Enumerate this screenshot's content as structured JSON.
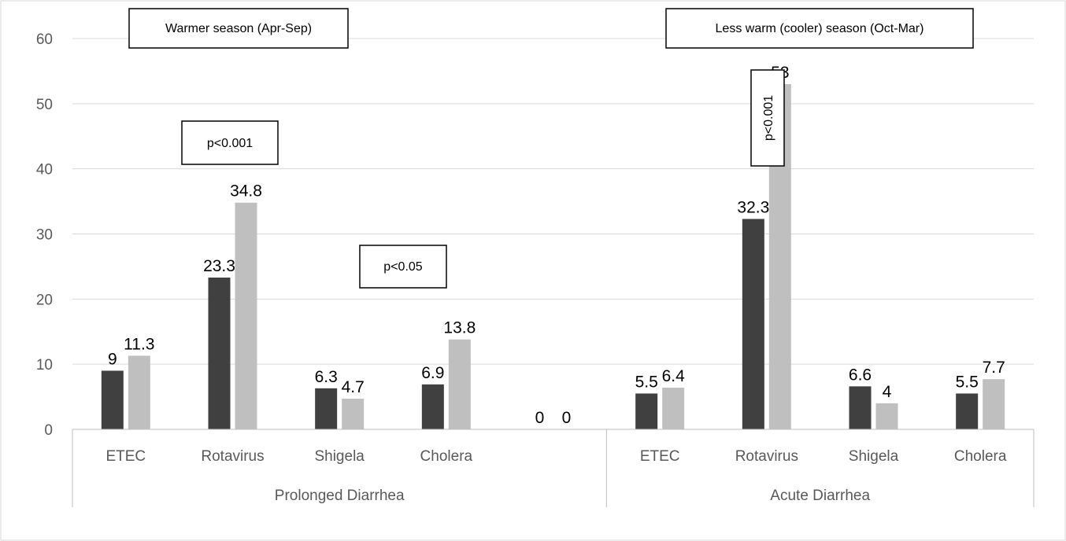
{
  "chart_data": {
    "type": "bar",
    "title": "",
    "xlabel": "",
    "ylabel": "",
    "ylim": [
      0,
      60
    ],
    "yticks": [
      "0",
      "10",
      "20",
      "30",
      "40",
      "50",
      "60"
    ],
    "grid": true,
    "legend": "none",
    "colors": {
      "series_1": "#404040",
      "series_2": "#bfbfbf"
    },
    "groups": [
      {
        "name": "Prolonged Diarrhea",
        "categories": [
          "ETEC",
          "Rotavirus",
          "Shigela",
          "Cholera",
          ""
        ],
        "series": [
          {
            "values": [
              9,
              23.3,
              6.3,
              6.9,
              0
            ],
            "labels": [
              "9",
              "23.3",
              "6.3",
              "6.9",
              "0"
            ]
          },
          {
            "values": [
              11.3,
              34.8,
              4.7,
              13.8,
              0
            ],
            "labels": [
              "11.3",
              "34.8",
              "4.7",
              "13.8",
              "0"
            ]
          }
        ]
      },
      {
        "name": "Acute Diarrhea",
        "categories": [
          "ETEC",
          "Rotavirus",
          "Shigela",
          "Cholera"
        ],
        "series": [
          {
            "values": [
              5.5,
              32.3,
              6.6,
              5.5
            ],
            "labels": [
              "5.5",
              "32.3",
              "6.6",
              "5.5"
            ]
          },
          {
            "values": [
              6.4,
              53,
              4,
              7.7
            ],
            "labels": [
              "6.4",
              "53",
              "4",
              "7.7"
            ]
          }
        ]
      }
    ],
    "annotations": {
      "warm_season": "Warmer season (Apr-Sep)",
      "cool_season": "Less warm (cooler) season (Oct-Mar)",
      "p_prolonged_rotavirus": "p<0.001",
      "p_prolonged_cholera": "p<0.05",
      "p_acute_rotavirus": "p<0.001"
    }
  }
}
